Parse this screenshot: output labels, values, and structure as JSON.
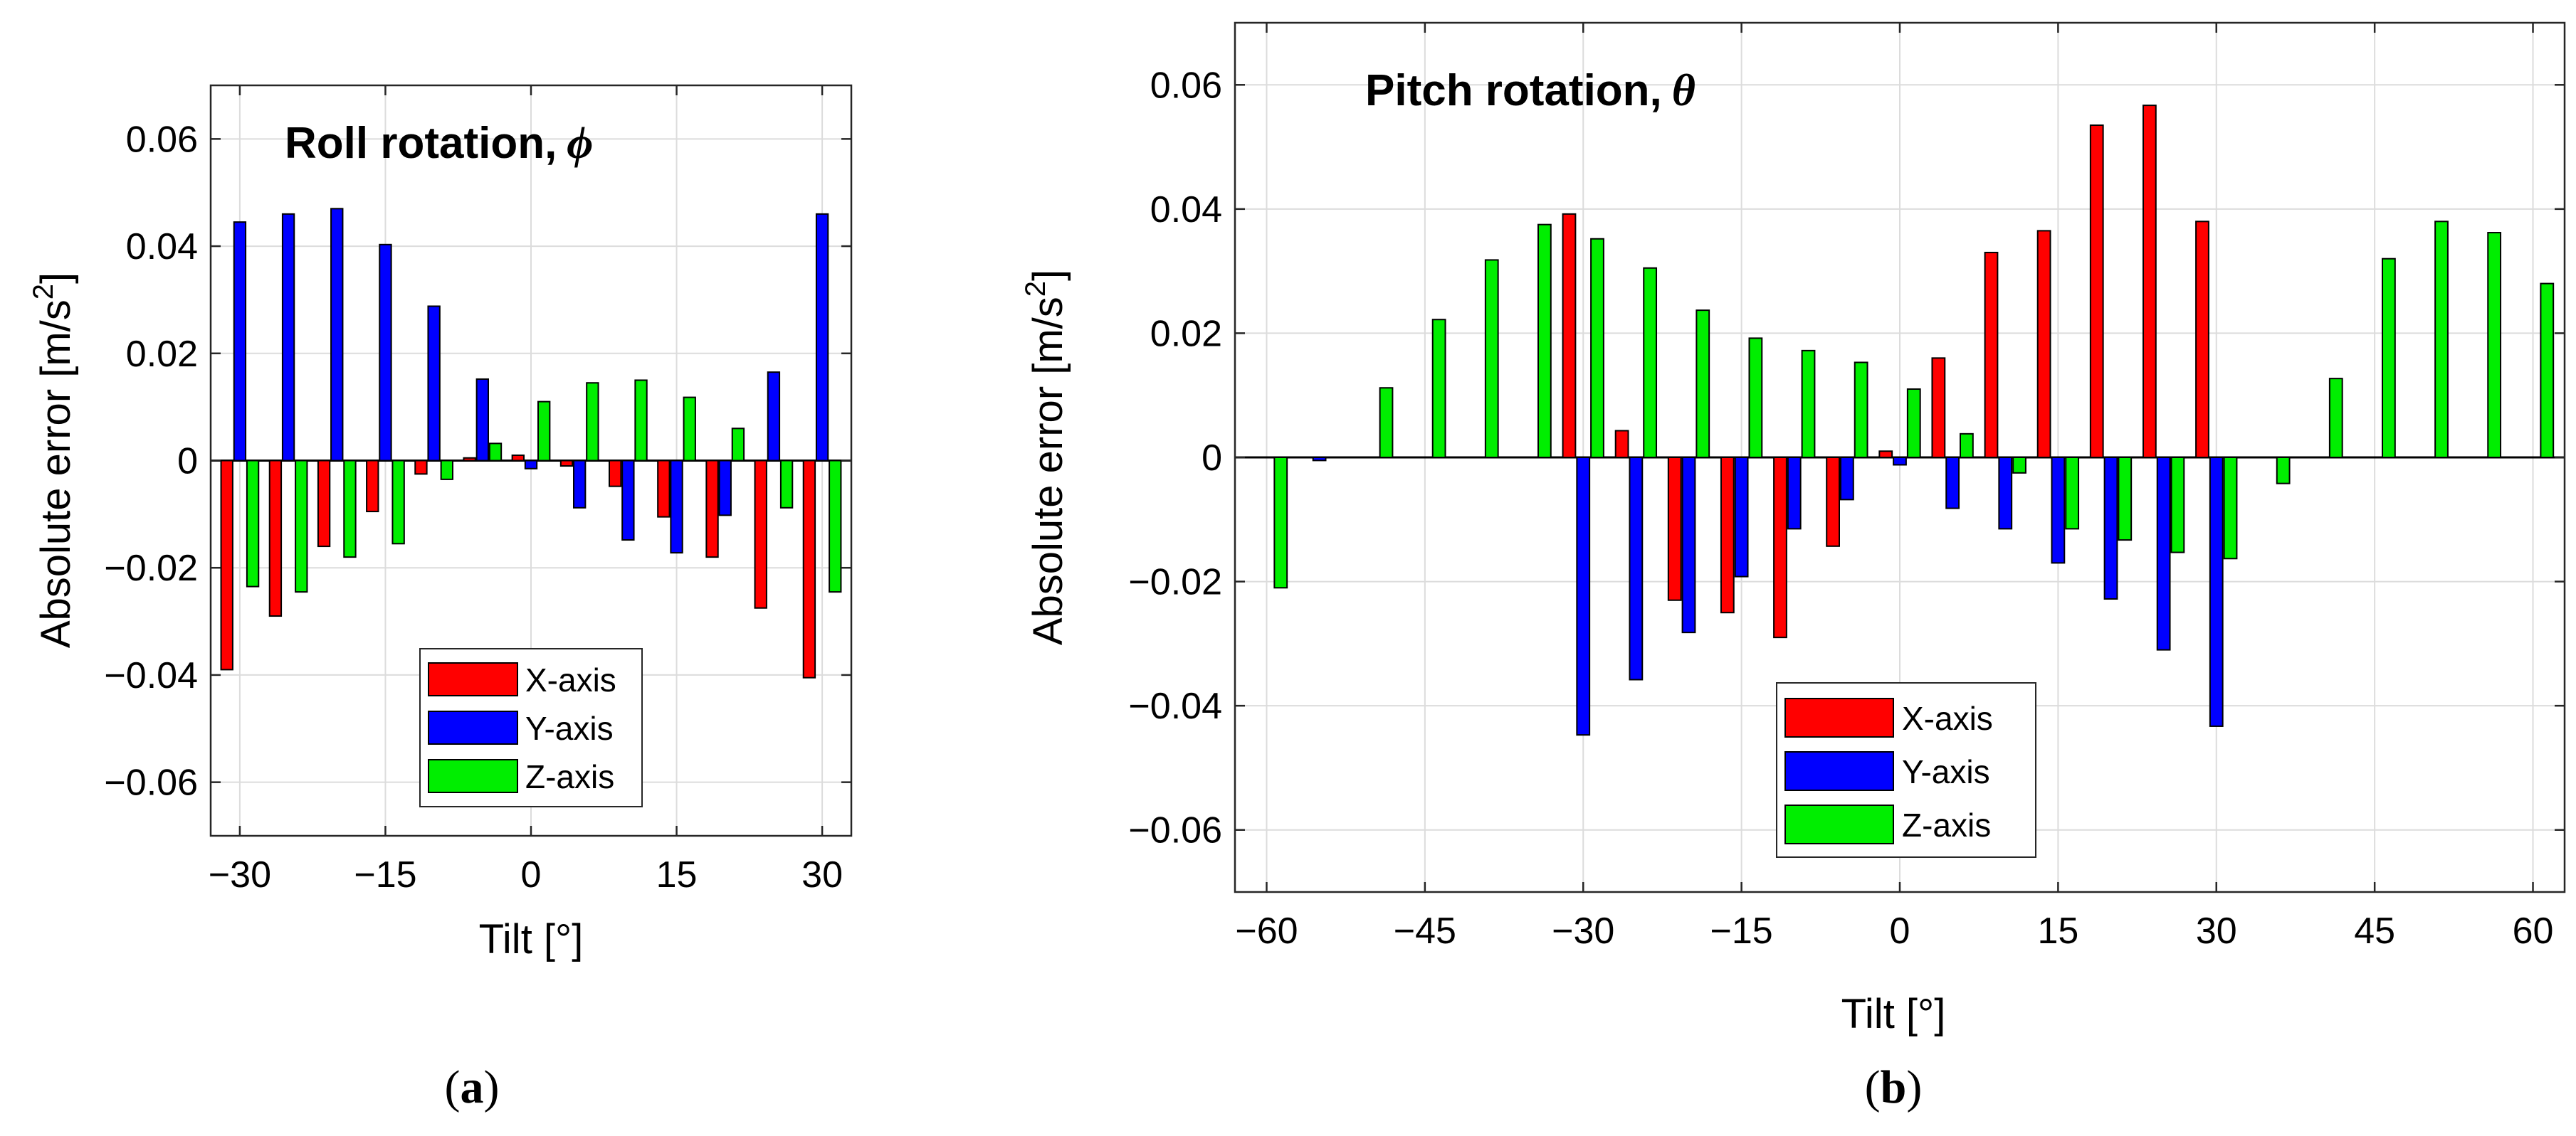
{
  "colors": {
    "x": "#ff0000",
    "y": "#0000ff",
    "z": "#00ee00",
    "grid": "#dcdcdc",
    "zero": "#000000"
  },
  "chart_data": [
    {
      "type": "bar",
      "panel": "a",
      "caption_letter": "a",
      "title_text": "Roll rotation,",
      "title_symbol": "ϕ",
      "xlabel": "Tilt [°]",
      "ylabel_main": "Absolute error [m/s",
      "ylabel_sup": "2",
      "ylabel_close": "]",
      "xlim": [
        -33,
        33
      ],
      "ylim": [
        -0.07,
        0.07
      ],
      "xticks": [
        -30,
        -15,
        0,
        15,
        30
      ],
      "xtick_labels": [
        "−30",
        "−15",
        "0",
        "15",
        "30"
      ],
      "yticks": [
        -0.06,
        -0.04,
        -0.02,
        0,
        0.02,
        0.04,
        0.06
      ],
      "ytick_labels": [
        "−0.06",
        "−0.04",
        "−0.02",
        "0",
        "0.02",
        "0.04",
        "0.06"
      ],
      "group_width": 5,
      "legend_position": "bottom-right",
      "x": [
        -30,
        -25,
        -20,
        -15,
        -10,
        -5,
        0,
        5,
        10,
        15,
        20,
        25,
        30
      ],
      "series": [
        {
          "name": "X-axis",
          "color_key": "x",
          "values": [
            -0.039,
            -0.029,
            -0.016,
            -0.0095,
            -0.0025,
            0.0005,
            0.001,
            -0.001,
            -0.0048,
            -0.0105,
            -0.018,
            -0.0275,
            -0.0405
          ]
        },
        {
          "name": "Y-axis",
          "color_key": "y",
          "values": [
            0.0445,
            0.046,
            0.047,
            0.0403,
            0.0288,
            0.0152,
            -0.0015,
            -0.0088,
            -0.0148,
            -0.0172,
            -0.0102,
            0.0165,
            0.046
          ]
        },
        {
          "name": "Z-axis",
          "color_key": "z",
          "values": [
            -0.0235,
            -0.0245,
            -0.018,
            -0.0155,
            -0.0035,
            0.0032,
            0.011,
            0.0145,
            0.015,
            0.0118,
            0.006,
            -0.0088,
            -0.0245
          ]
        }
      ]
    },
    {
      "type": "bar",
      "panel": "b",
      "caption_letter": "b",
      "title_text": "Pitch rotation,",
      "title_symbol": "θ",
      "xlabel": "Tilt [°]",
      "ylabel_main": "Absolute error [m/s",
      "ylabel_sup": "2",
      "ylabel_close": "]",
      "xlim": [
        -63,
        63
      ],
      "ylim": [
        -0.07,
        0.07
      ],
      "xticks": [
        -60,
        -45,
        -30,
        -15,
        0,
        15,
        30,
        45,
        60
      ],
      "xtick_labels": [
        "−60",
        "−45",
        "−30",
        "−15",
        "0",
        "15",
        "30",
        "45",
        "60"
      ],
      "yticks": [
        -0.06,
        -0.04,
        -0.02,
        0,
        0.02,
        0.04,
        0.06
      ],
      "ytick_labels": [
        "−0.06",
        "−0.04",
        "−0.02",
        "0",
        "0.02",
        "0.04",
        "0.06"
      ],
      "group_width": 5,
      "legend_position": "bottom-center",
      "x": [
        -60,
        -55,
        -50,
        -45,
        -40,
        -35,
        -30,
        -25,
        -20,
        -15,
        -10,
        -5,
        0,
        5,
        10,
        15,
        20,
        25,
        30,
        35,
        40,
        45,
        50,
        55,
        60
      ],
      "series": [
        {
          "name": "X-axis",
          "color_key": "x",
          "values": [
            0,
            0,
            0,
            0,
            0,
            0,
            0.0392,
            0.0043,
            -0.023,
            -0.025,
            -0.029,
            -0.0143,
            0.001,
            0.016,
            0.033,
            0.0365,
            0.0535,
            0.0567,
            0.038,
            0,
            0,
            0,
            0,
            0,
            0
          ]
        },
        {
          "name": "Y-axis",
          "color_key": "y",
          "values": [
            0,
            -0.0005,
            0,
            0,
            0,
            0,
            -0.0447,
            -0.0358,
            -0.0282,
            -0.0192,
            -0.0115,
            -0.0068,
            -0.0012,
            -0.0082,
            -0.0115,
            -0.017,
            -0.0228,
            -0.031,
            -0.0433,
            0,
            0,
            0,
            0,
            0,
            0
          ]
        },
        {
          "name": "Z-axis",
          "color_key": "z",
          "values": [
            -0.021,
            0,
            0.0112,
            0.0222,
            0.0318,
            0.0375,
            0.0352,
            0.0305,
            0.0237,
            0.0192,
            0.0172,
            0.0153,
            0.011,
            0.0038,
            -0.0025,
            -0.0115,
            -0.0133,
            -0.0153,
            -0.0163,
            -0.0042,
            0.0127,
            0.032,
            0.038,
            0.0362,
            0.028
          ]
        }
      ]
    }
  ]
}
